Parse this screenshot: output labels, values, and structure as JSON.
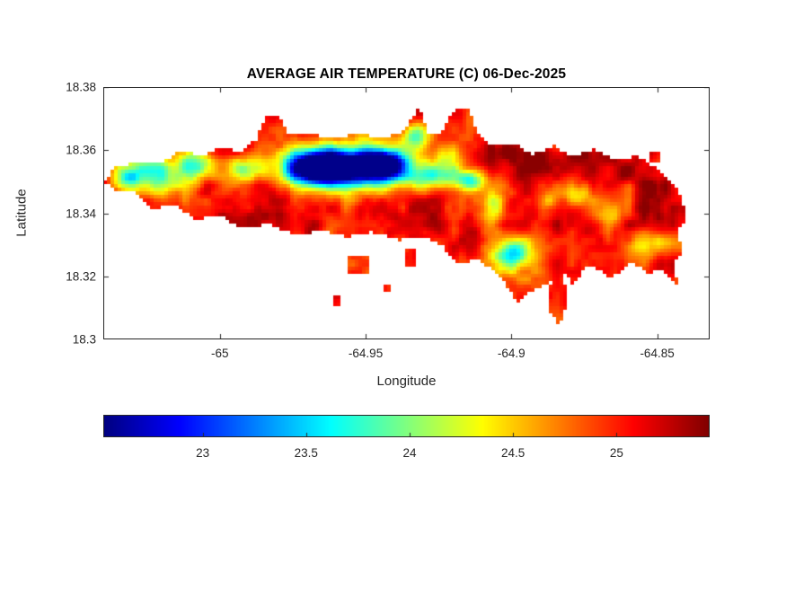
{
  "figure": {
    "background": "#ffffff",
    "axes_color": "#262626",
    "title_color": "#000000"
  },
  "chart_data": {
    "type": "heatmap",
    "title": "AVERAGE AIR TEMPERATURE (C) 06-Dec-2025",
    "xlabel": "Longitude",
    "ylabel": "Latitude",
    "xlim": [
      -65.04,
      -64.832
    ],
    "ylim": [
      18.3,
      18.38
    ],
    "xticks": [
      -65,
      -64.95,
      -64.9,
      -64.85
    ],
    "xtick_labels": [
      "-65",
      "-64.95",
      "-64.9",
      "-64.85"
    ],
    "yticks": [
      18.3,
      18.32,
      18.34,
      18.36,
      18.38
    ],
    "ytick_labels": [
      "18.3",
      "18.32",
      "18.34",
      "18.36",
      "18.38"
    ],
    "grid": false,
    "colormap": "jet",
    "caxis": [
      22.52,
      25.45
    ],
    "value_clamp": [
      22.55,
      25.42
    ],
    "colorbar": {
      "orientation": "horizontal",
      "ticks": [
        23,
        23.5,
        24,
        24.5,
        25
      ],
      "tick_labels": [
        "23",
        "23.5",
        "24",
        "24.5",
        "25"
      ]
    },
    "region": {
      "name": "island-landmass",
      "outline": [
        [
          -65.04,
          18.35
        ],
        [
          -65.036,
          18.3545
        ],
        [
          -65.028,
          18.3565
        ],
        [
          -65.021,
          18.3555
        ],
        [
          -65.014,
          18.3595
        ],
        [
          -65.006,
          18.3585
        ],
        [
          -64.999,
          18.361
        ],
        [
          -64.993,
          18.359
        ],
        [
          -64.9875,
          18.3635
        ],
        [
          -64.9845,
          18.3705
        ],
        [
          -64.98,
          18.3715
        ],
        [
          -64.977,
          18.3655
        ],
        [
          -64.9695,
          18.3655
        ],
        [
          -64.962,
          18.3635
        ],
        [
          -64.9525,
          18.3655
        ],
        [
          -64.9435,
          18.3635
        ],
        [
          -64.9365,
          18.3665
        ],
        [
          -64.9315,
          18.374
        ],
        [
          -64.9285,
          18.3655
        ],
        [
          -64.924,
          18.3655
        ],
        [
          -64.92,
          18.3725
        ],
        [
          -64.9145,
          18.3735
        ],
        [
          -64.9115,
          18.3655
        ],
        [
          -64.9065,
          18.3615
        ],
        [
          -64.899,
          18.362
        ],
        [
          -64.8925,
          18.3585
        ],
        [
          -64.8855,
          18.3615
        ],
        [
          -64.879,
          18.358
        ],
        [
          -64.8715,
          18.3605
        ],
        [
          -64.8645,
          18.357
        ],
        [
          -64.857,
          18.358
        ],
        [
          -64.85,
          18.3545
        ],
        [
          -64.8445,
          18.3495
        ],
        [
          -64.8415,
          18.3445
        ],
        [
          -64.84,
          18.3375
        ],
        [
          -64.8435,
          18.3335
        ],
        [
          -64.841,
          18.3285
        ],
        [
          -64.8445,
          18.3235
        ],
        [
          -64.843,
          18.3175
        ],
        [
          -64.849,
          18.3225
        ],
        [
          -64.8525,
          18.3205
        ],
        [
          -64.8585,
          18.3245
        ],
        [
          -64.8655,
          18.3195
        ],
        [
          -64.8735,
          18.3235
        ],
        [
          -64.879,
          18.3175
        ],
        [
          -64.8825,
          18.3215
        ],
        [
          -64.8805,
          18.3125
        ],
        [
          -64.8835,
          18.3045
        ],
        [
          -64.8875,
          18.3095
        ],
        [
          -64.8865,
          18.318
        ],
        [
          -64.893,
          18.3155
        ],
        [
          -64.8975,
          18.3115
        ],
        [
          -64.902,
          18.3175
        ],
        [
          -64.907,
          18.3225
        ],
        [
          -64.9125,
          18.3255
        ],
        [
          -64.918,
          18.3235
        ],
        [
          -64.9235,
          18.3295
        ],
        [
          -64.93,
          18.3325
        ],
        [
          -64.9385,
          18.3315
        ],
        [
          -64.9475,
          18.334
        ],
        [
          -64.9565,
          18.3325
        ],
        [
          -64.9655,
          18.3345
        ],
        [
          -64.974,
          18.333
        ],
        [
          -64.9835,
          18.3365
        ],
        [
          -64.9925,
          18.335
        ],
        [
          -65.0005,
          18.3395
        ],
        [
          -65.008,
          18.338
        ],
        [
          -65.0155,
          18.3425
        ],
        [
          -65.023,
          18.3415
        ],
        [
          -65.0295,
          18.3465
        ],
        [
          -65.0355,
          18.347
        ]
      ],
      "islets": [
        [
          -64.9565,
          18.3205,
          -64.9485,
          18.3265
        ],
        [
          -64.9435,
          18.3155,
          -64.9415,
          18.3175
        ],
        [
          -64.9368,
          18.3235,
          -64.9322,
          18.3285
        ],
        [
          -64.9605,
          18.3105,
          -64.9585,
          18.3135
        ],
        [
          -64.8525,
          18.3565,
          -64.8495,
          18.36
        ]
      ]
    },
    "temperature_field": {
      "base_c": 25.0,
      "noise": {
        "octave1": {
          "scale_deg": 0.006,
          "amp_c": 0.22
        },
        "octave2": {
          "scale_deg": 0.0025,
          "amp_c": 0.12
        }
      },
      "cool_spots": [
        {
          "lon": -64.9655,
          "lat": 18.3545,
          "drop_c": 2.75,
          "sx": 0.0085,
          "sy": 0.0038
        },
        {
          "lon": -64.9445,
          "lat": 18.3555,
          "drop_c": 2.5,
          "sx": 0.0055,
          "sy": 0.0033
        },
        {
          "lon": -64.9555,
          "lat": 18.3545,
          "drop_c": 1.8,
          "sx": 0.013,
          "sy": 0.005
        },
        {
          "lon": -64.9275,
          "lat": 18.352,
          "drop_c": 1.2,
          "sx": 0.007,
          "sy": 0.0028
        },
        {
          "lon": -64.9135,
          "lat": 18.3505,
          "drop_c": 1.15,
          "sx": 0.0045,
          "sy": 0.0025
        },
        {
          "lon": -64.8995,
          "lat": 18.327,
          "drop_c": 1.5,
          "sx": 0.0048,
          "sy": 0.0038
        },
        {
          "lon": -65.0215,
          "lat": 18.3525,
          "drop_c": 1.15,
          "sx": 0.008,
          "sy": 0.0042
        },
        {
          "lon": -65.0315,
          "lat": 18.3505,
          "drop_c": 0.9,
          "sx": 0.0035,
          "sy": 0.0028
        },
        {
          "lon": -65.009,
          "lat": 18.3555,
          "drop_c": 0.9,
          "sx": 0.004,
          "sy": 0.003
        },
        {
          "lon": -64.9325,
          "lat": 18.3645,
          "drop_c": 1.0,
          "sx": 0.0035,
          "sy": 0.0028
        },
        {
          "lon": -64.8665,
          "lat": 18.3405,
          "drop_c": 0.85,
          "sx": 0.005,
          "sy": 0.004
        },
        {
          "lon": -64.854,
          "lat": 18.3305,
          "drop_c": 0.8,
          "sx": 0.0042,
          "sy": 0.0032
        },
        {
          "lon": -64.8775,
          "lat": 18.3455,
          "drop_c": 0.7,
          "sx": 0.004,
          "sy": 0.003
        },
        {
          "lon": -64.9935,
          "lat": 18.354,
          "drop_c": 0.8,
          "sx": 0.005,
          "sy": 0.003
        },
        {
          "lon": -64.906,
          "lat": 18.342,
          "drop_c": 0.9,
          "sx": 0.003,
          "sy": 0.004
        },
        {
          "lon": -64.8875,
          "lat": 18.3435,
          "drop_c": 0.6,
          "sx": 0.003,
          "sy": 0.0025
        },
        {
          "lon": -64.8595,
          "lat": 18.3475,
          "drop_c": 0.5,
          "sx": 0.0028,
          "sy": 0.0022
        },
        {
          "lon": -64.8465,
          "lat": 18.3305,
          "drop_c": 0.5,
          "sx": 0.003,
          "sy": 0.0025
        },
        {
          "lon": -64.9215,
          "lat": 18.3585,
          "drop_c": 0.7,
          "sx": 0.003,
          "sy": 0.0025
        }
      ],
      "warm_spots": [
        {
          "lon": -64.862,
          "lat": 18.344,
          "add_c": 0.35,
          "sx": 0.02,
          "sy": 0.012
        },
        {
          "lon": -64.9,
          "lat": 18.3565,
          "add_c": 0.3,
          "sx": 0.009,
          "sy": 0.005
        },
        {
          "lon": -64.988,
          "lat": 18.3375,
          "add_c": 0.3,
          "sx": 0.013,
          "sy": 0.0045
        },
        {
          "lon": -64.934,
          "lat": 18.3375,
          "add_c": 0.25,
          "sx": 0.012,
          "sy": 0.005
        },
        {
          "lon": -64.8755,
          "lat": 18.3565,
          "add_c": 0.25,
          "sx": 0.006,
          "sy": 0.004
        },
        {
          "lon": -65.0,
          "lat": 18.36,
          "add_c": 0.2,
          "sx": 0.006,
          "sy": 0.003
        }
      ]
    }
  }
}
